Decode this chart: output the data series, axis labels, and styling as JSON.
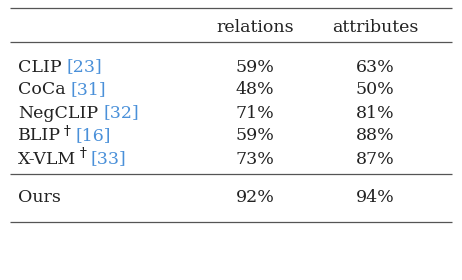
{
  "header_cols": [
    "relations",
    "attributes"
  ],
  "rows": [
    {
      "label": "CLIP",
      "ref": "23",
      "relations": "59%",
      "attributes": "63%",
      "dagger": false
    },
    {
      "label": "CoCa",
      "ref": "31",
      "relations": "48%",
      "attributes": "50%",
      "dagger": false
    },
    {
      "label": "NegCLIP",
      "ref": "32",
      "relations": "71%",
      "attributes": "81%",
      "dagger": false
    },
    {
      "label": "BLIP",
      "ref": "16",
      "relations": "59%",
      "attributes": "88%",
      "dagger": true
    },
    {
      "label": "X-VLM",
      "ref": "33",
      "relations": "73%",
      "attributes": "87%",
      "dagger": true
    }
  ],
  "ours": {
    "label": "Ours",
    "relations": "92%",
    "attributes": "94%"
  },
  "text_color": "#222222",
  "ref_color": "#4a90d9",
  "bg_color": "#ffffff",
  "header_fontsize": 12.5,
  "body_fontsize": 12.5,
  "dagger_fontsize": 9.5,
  "line_color": "#555555",
  "line_lw": 0.9
}
